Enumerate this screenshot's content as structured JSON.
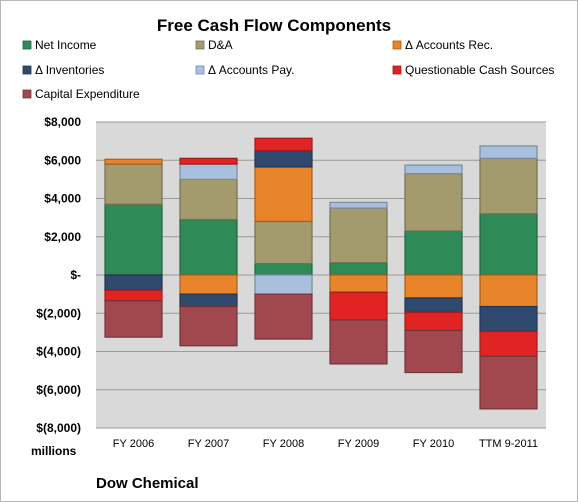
{
  "chart_data": {
    "type": "bar",
    "stacked": true,
    "title": "Free Cash Flow Components",
    "unit_label": "millions",
    "company": "Dow Chemical",
    "categories": [
      "FY 2006",
      "FY 2007",
      "FY 2008",
      "FY 2009",
      "FY 2010",
      "TTM 9-2011"
    ],
    "ylim": [
      -8000,
      8000
    ],
    "yticks": [
      8000,
      6000,
      4000,
      2000,
      0,
      -2000,
      -4000,
      -6000,
      -8000
    ],
    "ytick_labels": [
      "$8,000",
      "$6,000",
      "$4,000",
      "$2,000",
      "$-",
      "$(2,000)",
      "$(4,000)",
      "$(6,000)",
      "$(8,000)"
    ],
    "plot_background": "#d9d9d9",
    "grid": true,
    "legend_position": "top",
    "series": [
      {
        "name": "Net Income",
        "color": "#2e8b57",
        "values": [
          3700,
          2900,
          600,
          650,
          2300,
          3200
        ]
      },
      {
        "name": "D&A",
        "color": "#a39b6e",
        "values": [
          2100,
          2100,
          2200,
          2850,
          3000,
          2900
        ]
      },
      {
        "name": "Δ Accounts Rec.",
        "color": "#e8842a",
        "values": [
          250,
          -1000,
          2850,
          -900,
          -1200,
          -1650
        ]
      },
      {
        "name": "Δ Inventories",
        "color": "#2f4a6e",
        "values": [
          -800,
          -650,
          850,
          0,
          -750,
          -1300
        ]
      },
      {
        "name": "Δ Accounts Pay.",
        "color": "#a8c0de",
        "values": [
          0,
          800,
          -1000,
          300,
          450,
          650
        ]
      },
      {
        "name": "Questionable Cash Sources",
        "color": "#e02424",
        "values": [
          -550,
          300,
          650,
          -1450,
          -950,
          -1300
        ]
      },
      {
        "name": "Capital Expenditure",
        "color": "#a0484e",
        "values": [
          -1900,
          -2050,
          -2350,
          -2300,
          -2200,
          -2750
        ]
      }
    ]
  }
}
